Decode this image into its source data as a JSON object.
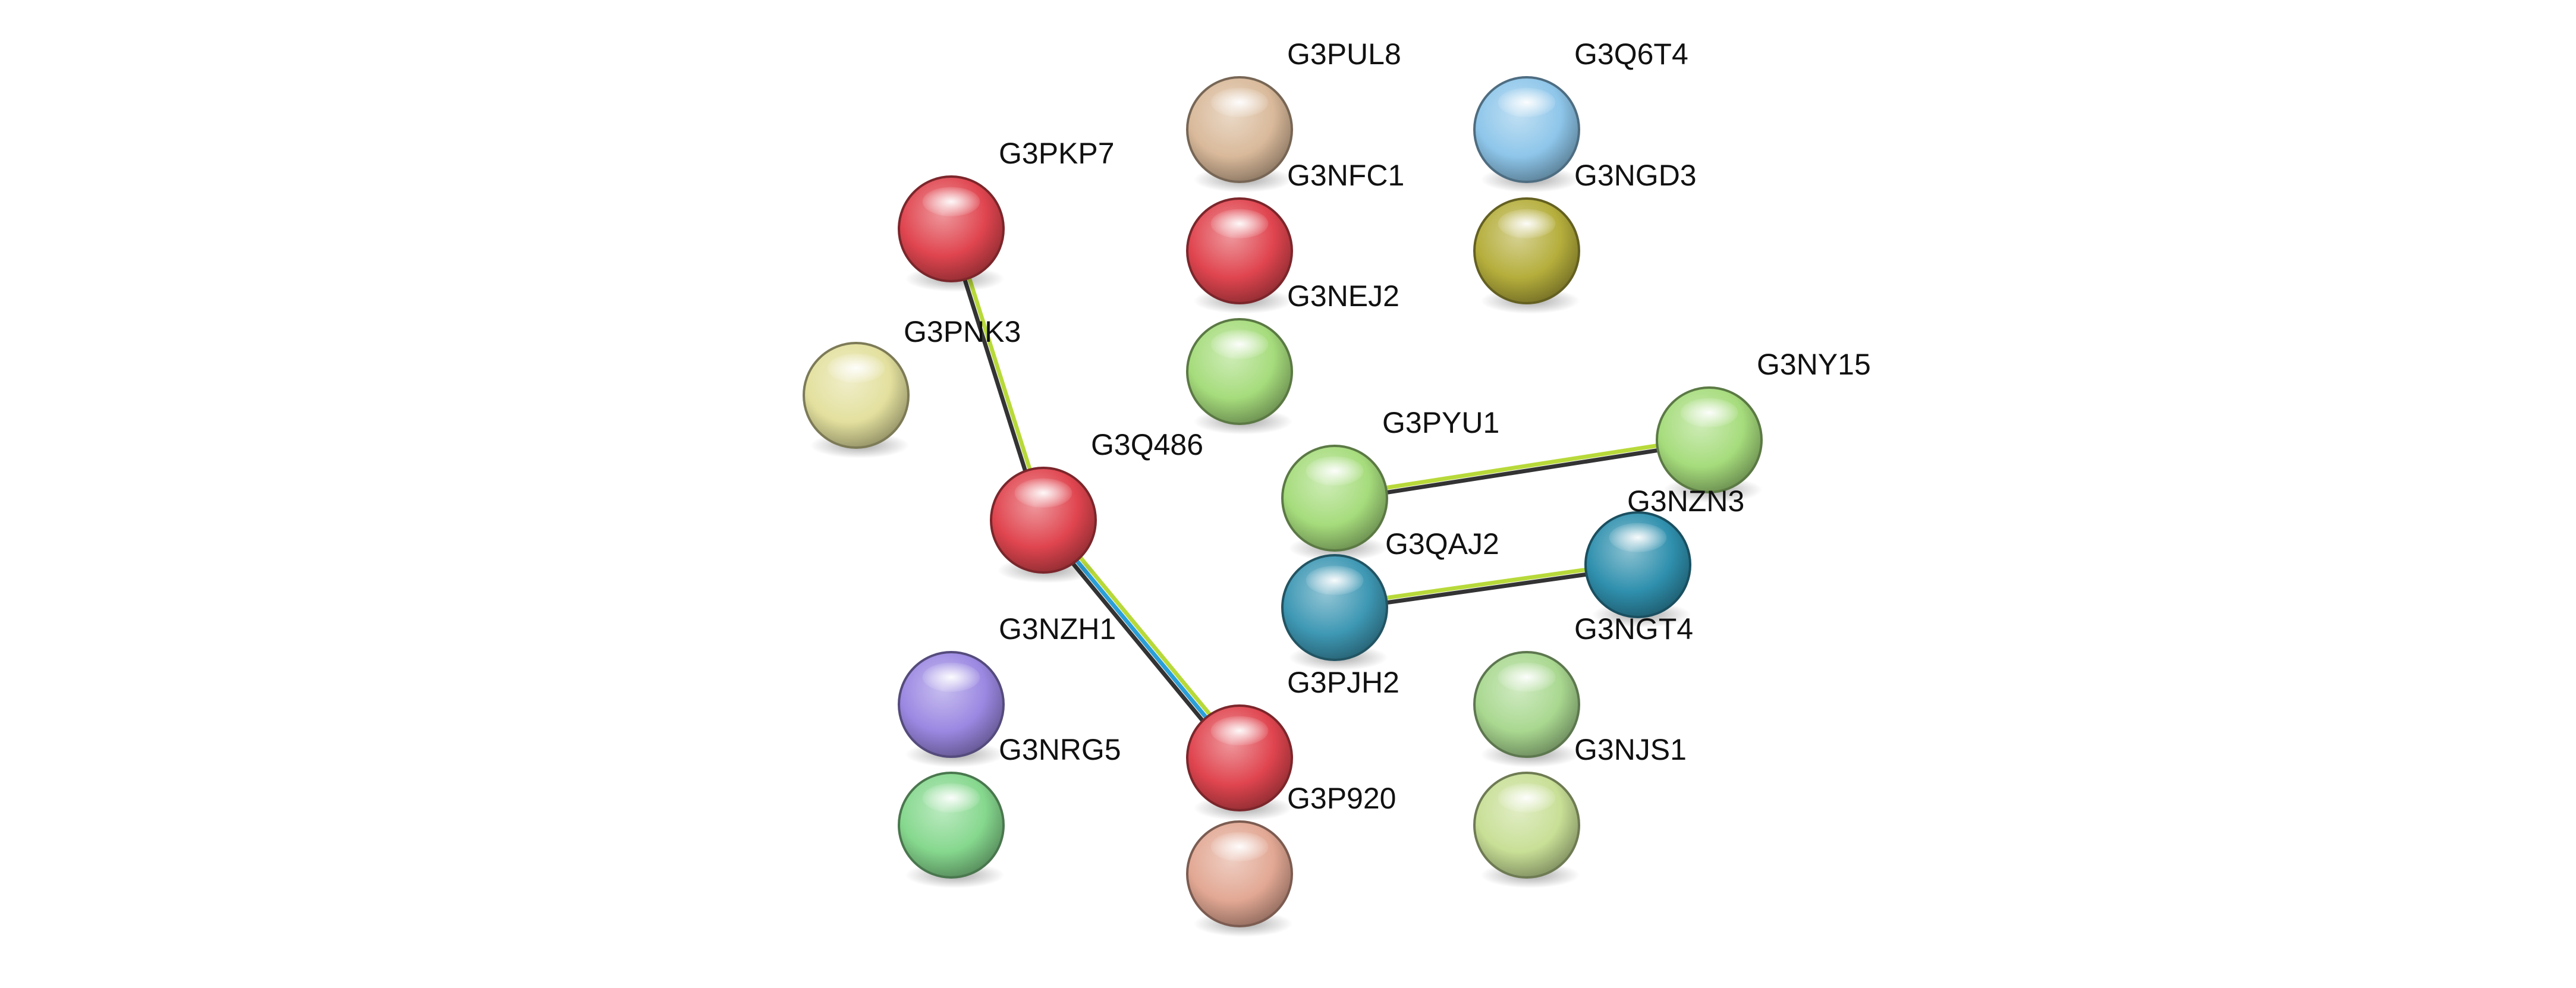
{
  "network": {
    "nodes": [
      {
        "id": "G3PUL8",
        "label": "G3PUL8",
        "color": "#d9b99a"
      },
      {
        "id": "G3Q6T4",
        "label": "G3Q6T4",
        "color": "#8ec6ea"
      },
      {
        "id": "G3PKP7",
        "label": "G3PKP7",
        "color": "#e0454f"
      },
      {
        "id": "G3NFC1",
        "label": "G3NFC1",
        "color": "#e0454f"
      },
      {
        "id": "G3NGD3",
        "label": "G3NGD3",
        "color": "#b5ae3c"
      },
      {
        "id": "G3NEJ2",
        "label": "G3NEJ2",
        "color": "#a6dc7c"
      },
      {
        "id": "G3PNK3",
        "label": "G3PNK3",
        "color": "#e3e09e"
      },
      {
        "id": "G3NY15",
        "label": "G3NY15",
        "color": "#a6dc7c"
      },
      {
        "id": "G3PYU1",
        "label": "G3PYU1",
        "color": "#a6dc7c"
      },
      {
        "id": "G3Q486",
        "label": "G3Q486",
        "color": "#e0454f"
      },
      {
        "id": "G3NZN3",
        "label": "G3NZN3",
        "color": "#2f90ae"
      },
      {
        "id": "G3QAJ2",
        "label": "G3QAJ2",
        "color": "#3e98b4"
      },
      {
        "id": "G3NZH1",
        "label": "G3NZH1",
        "color": "#9b88e2"
      },
      {
        "id": "G3NGT4",
        "label": "G3NGT4",
        "color": "#a9d890"
      },
      {
        "id": "G3PJH2",
        "label": "G3PJH2",
        "color": "#e0454f"
      },
      {
        "id": "G3NRG5",
        "label": "G3NRG5",
        "color": "#86d88e"
      },
      {
        "id": "G3NJS1",
        "label": "G3NJS1",
        "color": "#c8df96"
      },
      {
        "id": "G3P920",
        "label": "G3P920",
        "color": "#e2a894"
      }
    ],
    "edges": [
      {
        "source": "G3PKP7",
        "target": "G3Q486",
        "colors": [
          "#b8d93a",
          "#333333"
        ]
      },
      {
        "source": "G3Q486",
        "target": "G3PJH2",
        "colors": [
          "#b8d93a",
          "#2b9fd8",
          "#333333"
        ]
      },
      {
        "source": "G3PYU1",
        "target": "G3NY15",
        "colors": [
          "#b8d93a",
          "#333333"
        ]
      },
      {
        "source": "G3QAJ2",
        "target": "G3NZN3",
        "colors": [
          "#b8d93a",
          "#333333"
        ]
      }
    ]
  }
}
